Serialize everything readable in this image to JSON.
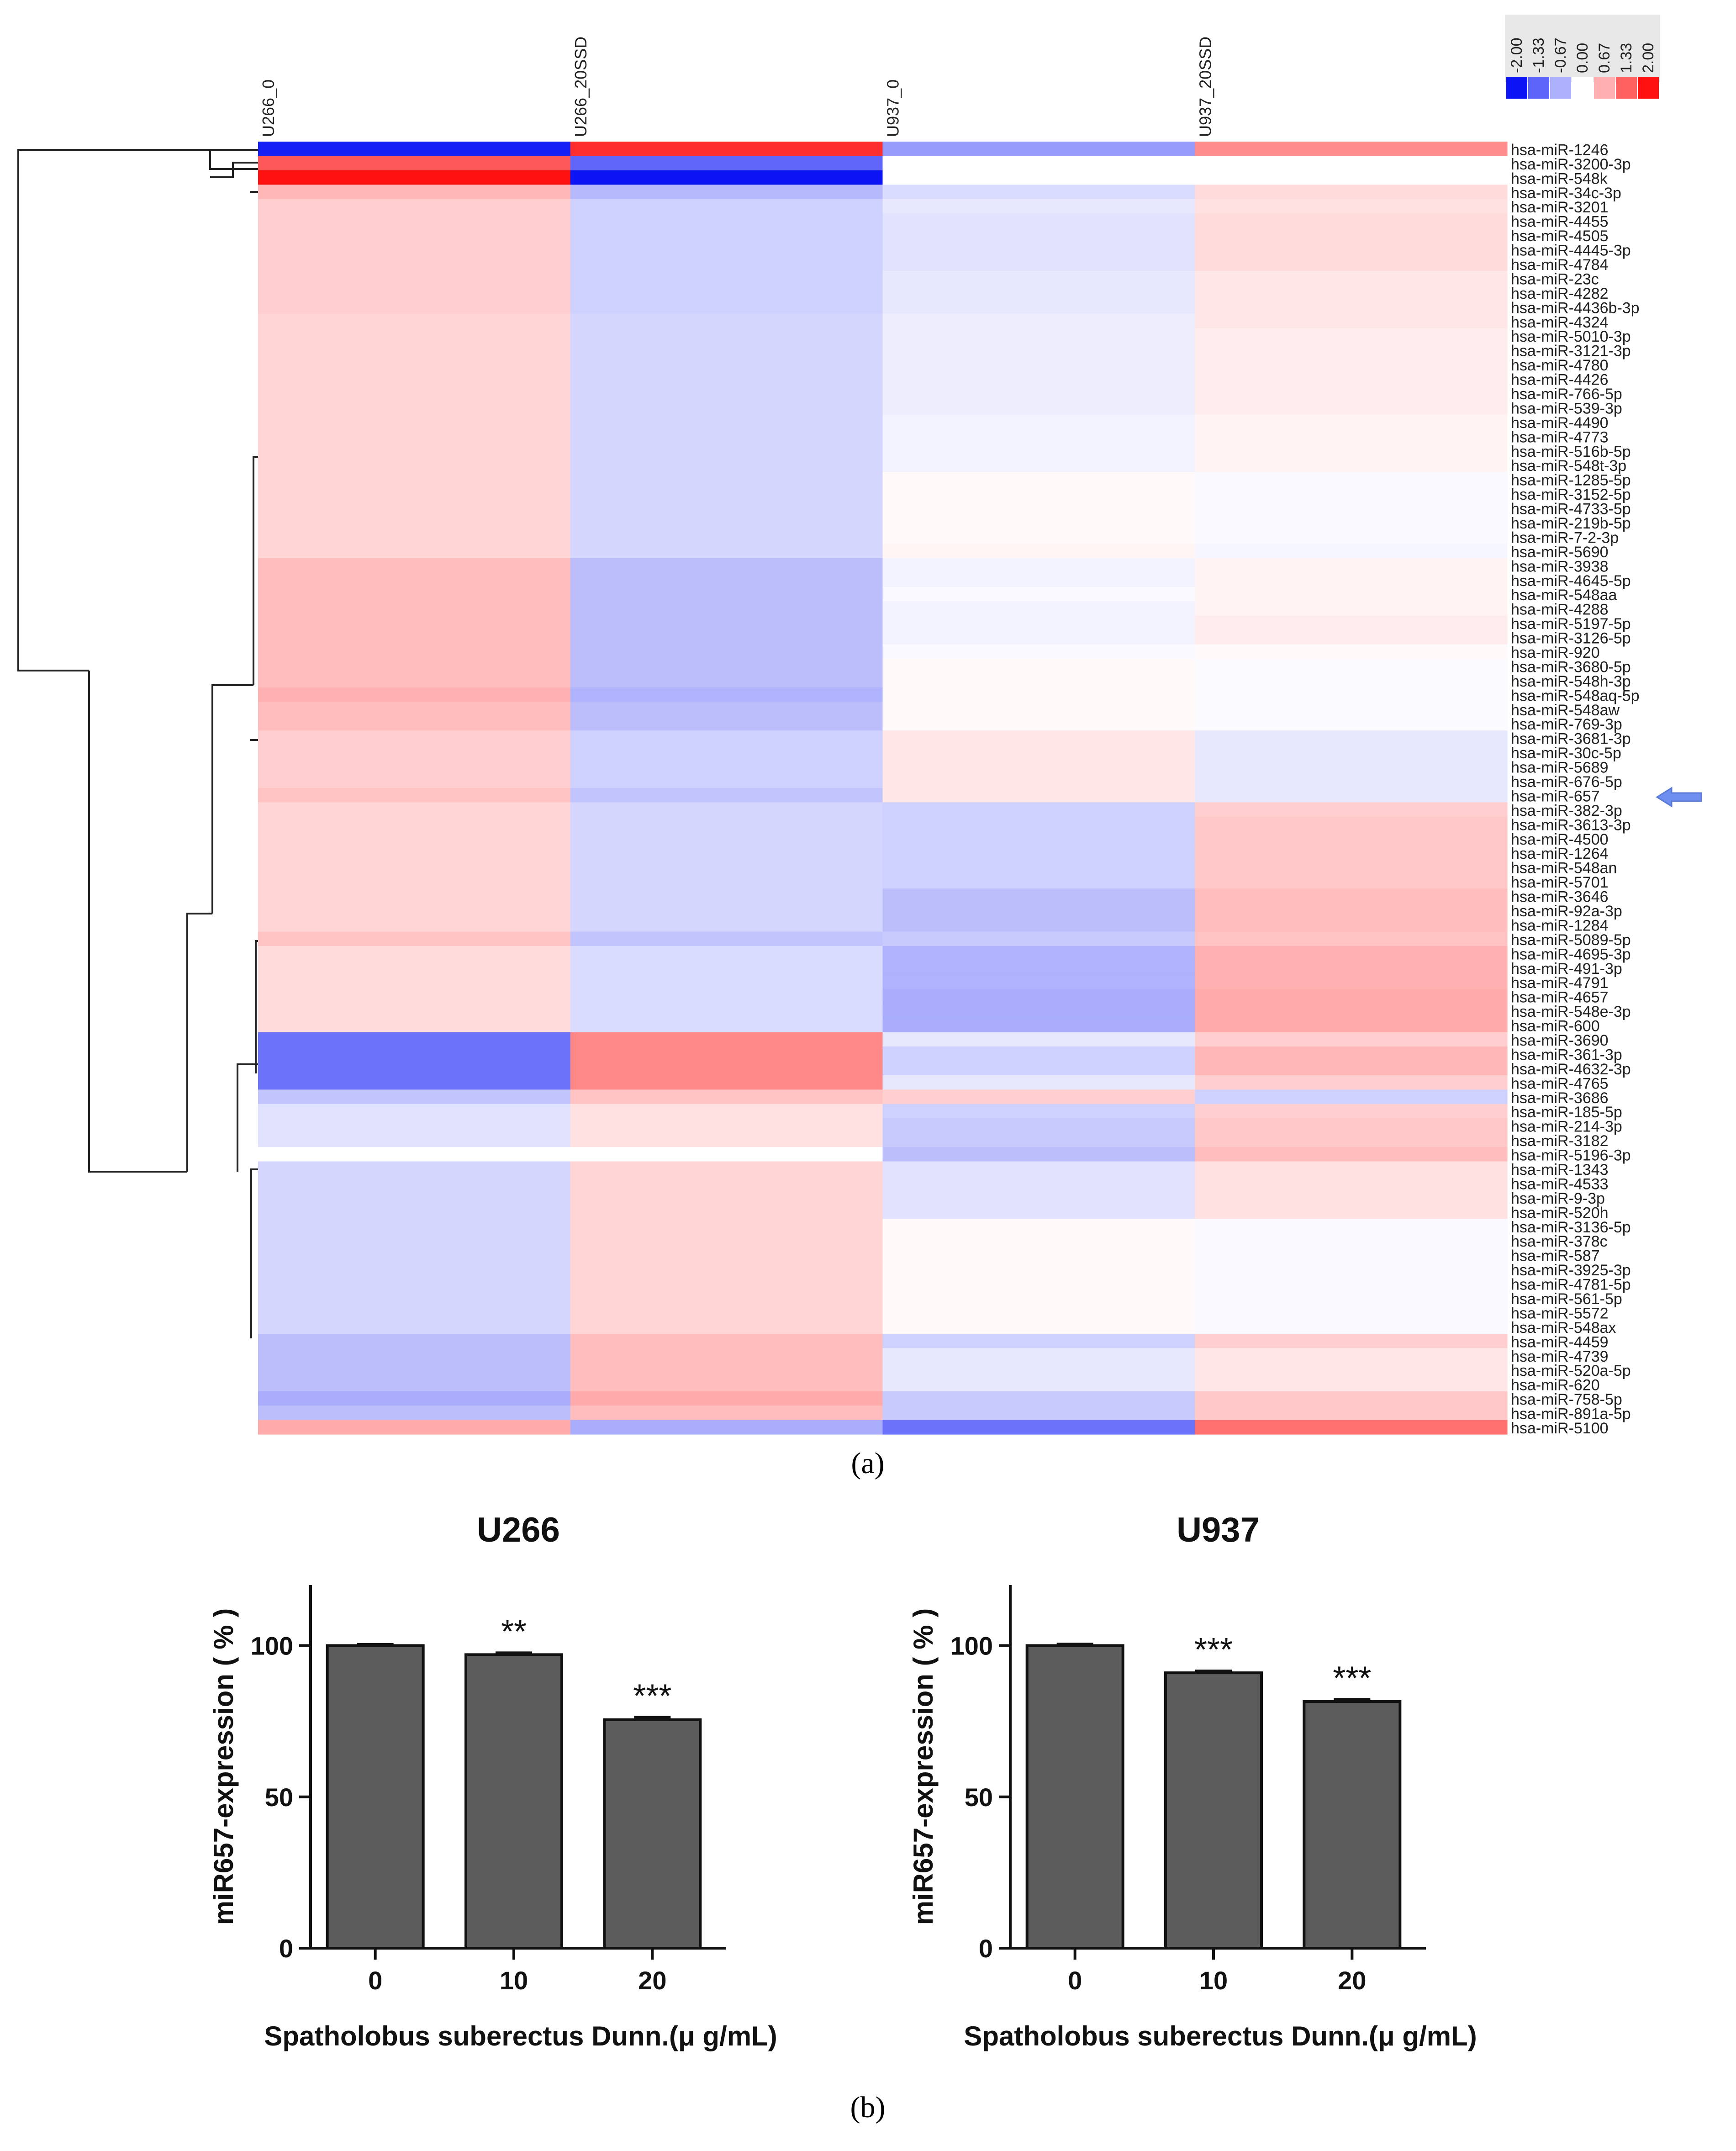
{
  "panel_labels": {
    "a": "(a)",
    "b": "(b)"
  },
  "colors": {
    "low": "#0a14f5",
    "mid": "#ffffff",
    "high": "#ff1010",
    "bar": "#5c5c5c",
    "arrow": "#6f8ff0",
    "legend_bg": "#e8e8e8"
  },
  "chart_data": [
    {
      "type": "heatmap",
      "title": "",
      "columns": [
        "U266_0",
        "U266_20SSD",
        "U937_0",
        "U937_20SSD"
      ],
      "color_scale": {
        "range": [
          -2.0,
          2.0
        ],
        "legend_labels": [
          "-2.00",
          "-1.33",
          "-0.67",
          "0.00",
          "0.67",
          "1.33",
          "2.00"
        ]
      },
      "highlighted_row": "hsa-miR-657",
      "rows": [
        {
          "gene": "hsa-miR-1246",
          "values": [
            -1.9,
            1.75,
            -0.85,
            0.95
          ]
        },
        {
          "gene": "hsa-miR-3200-3p",
          "values": [
            1.4,
            -1.3,
            0.0,
            0.0
          ]
        },
        {
          "gene": "hsa-miR-548k",
          "values": [
            2.0,
            -2.0,
            0.0,
            0.0
          ]
        },
        {
          "gene": "hsa-miR-34c-3p",
          "values": [
            0.6,
            -0.6,
            -0.3,
            0.3
          ]
        },
        {
          "gene": "hsa-miR-3201",
          "values": [
            0.4,
            -0.4,
            -0.2,
            0.25
          ]
        },
        {
          "gene": "hsa-miR-4455",
          "values": [
            0.4,
            -0.4,
            -0.25,
            0.3
          ]
        },
        {
          "gene": "hsa-miR-4505",
          "values": [
            0.4,
            -0.4,
            -0.25,
            0.3
          ]
        },
        {
          "gene": "hsa-miR-4445-3p",
          "values": [
            0.4,
            -0.4,
            -0.25,
            0.3
          ]
        },
        {
          "gene": "hsa-miR-4784",
          "values": [
            0.4,
            -0.4,
            -0.25,
            0.3
          ]
        },
        {
          "gene": "hsa-miR-23c",
          "values": [
            0.4,
            -0.4,
            -0.2,
            0.2
          ]
        },
        {
          "gene": "hsa-miR-4282",
          "values": [
            0.4,
            -0.4,
            -0.2,
            0.2
          ]
        },
        {
          "gene": "hsa-miR-4436b-3p",
          "values": [
            0.4,
            -0.4,
            -0.2,
            0.2
          ]
        },
        {
          "gene": "hsa-miR-4324",
          "values": [
            0.35,
            -0.35,
            -0.15,
            0.2
          ]
        },
        {
          "gene": "hsa-miR-5010-3p",
          "values": [
            0.35,
            -0.35,
            -0.15,
            0.15
          ]
        },
        {
          "gene": "hsa-miR-3121-3p",
          "values": [
            0.35,
            -0.35,
            -0.15,
            0.15
          ]
        },
        {
          "gene": "hsa-miR-4780",
          "values": [
            0.35,
            -0.35,
            -0.15,
            0.15
          ]
        },
        {
          "gene": "hsa-miR-4426",
          "values": [
            0.35,
            -0.35,
            -0.15,
            0.15
          ]
        },
        {
          "gene": "hsa-miR-766-5p",
          "values": [
            0.35,
            -0.35,
            -0.15,
            0.15
          ]
        },
        {
          "gene": "hsa-miR-539-3p",
          "values": [
            0.35,
            -0.35,
            -0.15,
            0.15
          ]
        },
        {
          "gene": "hsa-miR-4490",
          "values": [
            0.35,
            -0.35,
            -0.1,
            0.1
          ]
        },
        {
          "gene": "hsa-miR-4773",
          "values": [
            0.35,
            -0.35,
            -0.1,
            0.1
          ]
        },
        {
          "gene": "hsa-miR-516b-5p",
          "values": [
            0.35,
            -0.35,
            -0.1,
            0.1
          ]
        },
        {
          "gene": "hsa-miR-548t-3p",
          "values": [
            0.35,
            -0.35,
            -0.1,
            0.1
          ]
        },
        {
          "gene": "hsa-miR-1285-5p",
          "values": [
            0.35,
            -0.35,
            0.05,
            -0.05
          ]
        },
        {
          "gene": "hsa-miR-3152-5p",
          "values": [
            0.35,
            -0.35,
            0.05,
            -0.05
          ]
        },
        {
          "gene": "hsa-miR-4733-5p",
          "values": [
            0.35,
            -0.35,
            0.05,
            -0.05
          ]
        },
        {
          "gene": "hsa-miR-219b-5p",
          "values": [
            0.35,
            -0.35,
            0.05,
            -0.05
          ]
        },
        {
          "gene": "hsa-miR-7-2-3p",
          "values": [
            0.35,
            -0.35,
            0.05,
            -0.05
          ]
        },
        {
          "gene": "hsa-miR-5690",
          "values": [
            0.35,
            -0.35,
            0.08,
            -0.08
          ]
        },
        {
          "gene": "hsa-miR-3938",
          "values": [
            0.55,
            -0.55,
            -0.1,
            0.1
          ]
        },
        {
          "gene": "hsa-miR-4645-5p",
          "values": [
            0.55,
            -0.55,
            -0.1,
            0.1
          ]
        },
        {
          "gene": "hsa-miR-548aa",
          "values": [
            0.55,
            -0.55,
            -0.05,
            0.1
          ]
        },
        {
          "gene": "hsa-miR-4288",
          "values": [
            0.55,
            -0.55,
            -0.1,
            0.1
          ]
        },
        {
          "gene": "hsa-miR-5197-5p",
          "values": [
            0.55,
            -0.55,
            -0.1,
            0.15
          ]
        },
        {
          "gene": "hsa-miR-3126-5p",
          "values": [
            0.55,
            -0.55,
            -0.1,
            0.15
          ]
        },
        {
          "gene": "hsa-miR-920",
          "values": [
            0.55,
            -0.55,
            -0.05,
            0.05
          ]
        },
        {
          "gene": "hsa-miR-3680-5p",
          "values": [
            0.55,
            -0.55,
            0.05,
            -0.03
          ]
        },
        {
          "gene": "hsa-miR-548h-3p",
          "values": [
            0.55,
            -0.55,
            0.05,
            -0.03
          ]
        },
        {
          "gene": "hsa-miR-548aq-5p",
          "values": [
            0.65,
            -0.65,
            0.05,
            -0.03
          ]
        },
        {
          "gene": "hsa-miR-548aw",
          "values": [
            0.55,
            -0.55,
            0.05,
            -0.03
          ]
        },
        {
          "gene": "hsa-miR-769-3p",
          "values": [
            0.55,
            -0.55,
            0.05,
            -0.03
          ]
        },
        {
          "gene": "hsa-miR-3681-3p",
          "values": [
            0.4,
            -0.4,
            0.2,
            -0.2
          ]
        },
        {
          "gene": "hsa-miR-30c-5p",
          "values": [
            0.4,
            -0.4,
            0.2,
            -0.2
          ]
        },
        {
          "gene": "hsa-miR-5689",
          "values": [
            0.4,
            -0.4,
            0.2,
            -0.2
          ]
        },
        {
          "gene": "hsa-miR-676-5p",
          "values": [
            0.4,
            -0.4,
            0.2,
            -0.2
          ]
        },
        {
          "gene": "hsa-miR-657",
          "values": [
            0.5,
            -0.5,
            0.2,
            -0.2
          ]
        },
        {
          "gene": "hsa-miR-382-3p",
          "values": [
            0.35,
            -0.35,
            -0.4,
            0.4
          ]
        },
        {
          "gene": "hsa-miR-3613-3p",
          "values": [
            0.35,
            -0.35,
            -0.4,
            0.45
          ]
        },
        {
          "gene": "hsa-miR-4500",
          "values": [
            0.35,
            -0.35,
            -0.4,
            0.45
          ]
        },
        {
          "gene": "hsa-miR-1264",
          "values": [
            0.35,
            -0.35,
            -0.4,
            0.45
          ]
        },
        {
          "gene": "hsa-miR-548an",
          "values": [
            0.35,
            -0.35,
            -0.4,
            0.45
          ]
        },
        {
          "gene": "hsa-miR-5701",
          "values": [
            0.35,
            -0.35,
            -0.4,
            0.45
          ]
        },
        {
          "gene": "hsa-miR-3646",
          "values": [
            0.35,
            -0.35,
            -0.55,
            0.55
          ]
        },
        {
          "gene": "hsa-miR-92a-3p",
          "values": [
            0.35,
            -0.35,
            -0.55,
            0.55
          ]
        },
        {
          "gene": "hsa-miR-1284",
          "values": [
            0.35,
            -0.35,
            -0.55,
            0.55
          ]
        },
        {
          "gene": "hsa-miR-5089-5p",
          "values": [
            0.5,
            -0.5,
            -0.45,
            0.5
          ]
        },
        {
          "gene": "hsa-miR-4695-3p",
          "values": [
            0.3,
            -0.3,
            -0.65,
            0.65
          ]
        },
        {
          "gene": "hsa-miR-491-3p",
          "values": [
            0.3,
            -0.3,
            -0.65,
            0.65
          ]
        },
        {
          "gene": "hsa-miR-4791",
          "values": [
            0.3,
            -0.3,
            -0.65,
            0.65
          ]
        },
        {
          "gene": "hsa-miR-4657",
          "values": [
            0.3,
            -0.3,
            -0.7,
            0.7
          ]
        },
        {
          "gene": "hsa-miR-548e-3p",
          "values": [
            0.3,
            -0.3,
            -0.7,
            0.7
          ]
        },
        {
          "gene": "hsa-miR-600",
          "values": [
            0.3,
            -0.3,
            -0.7,
            0.7
          ]
        },
        {
          "gene": "hsa-miR-3690",
          "values": [
            -1.2,
            1.0,
            -0.2,
            0.4
          ]
        },
        {
          "gene": "hsa-miR-361-3p",
          "values": [
            -1.2,
            1.0,
            -0.4,
            0.6
          ]
        },
        {
          "gene": "hsa-miR-4632-3p",
          "values": [
            -1.2,
            1.0,
            -0.4,
            0.6
          ]
        },
        {
          "gene": "hsa-miR-4765",
          "values": [
            -1.2,
            1.0,
            -0.2,
            0.4
          ]
        },
        {
          "gene": "hsa-miR-3686",
          "values": [
            -0.5,
            0.5,
            0.4,
            -0.4
          ]
        },
        {
          "gene": "hsa-miR-185-5p",
          "values": [
            -0.25,
            0.25,
            -0.4,
            0.4
          ]
        },
        {
          "gene": "hsa-miR-214-3p",
          "values": [
            -0.25,
            0.25,
            -0.45,
            0.45
          ]
        },
        {
          "gene": "hsa-miR-3182",
          "values": [
            -0.25,
            0.25,
            -0.45,
            0.45
          ]
        },
        {
          "gene": "hsa-miR-5196-3p",
          "values": [
            0.0,
            0.0,
            -0.55,
            0.55
          ]
        },
        {
          "gene": "hsa-miR-1343",
          "values": [
            -0.35,
            0.35,
            -0.25,
            0.25
          ]
        },
        {
          "gene": "hsa-miR-4533",
          "values": [
            -0.35,
            0.35,
            -0.25,
            0.25
          ]
        },
        {
          "gene": "hsa-miR-9-3p",
          "values": [
            -0.35,
            0.35,
            -0.25,
            0.25
          ]
        },
        {
          "gene": "hsa-miR-520h",
          "values": [
            -0.35,
            0.35,
            -0.25,
            0.25
          ]
        },
        {
          "gene": "hsa-miR-3136-5p",
          "values": [
            -0.35,
            0.35,
            0.05,
            -0.05
          ]
        },
        {
          "gene": "hsa-miR-378c",
          "values": [
            -0.35,
            0.35,
            0.05,
            -0.05
          ]
        },
        {
          "gene": "hsa-miR-587",
          "values": [
            -0.35,
            0.35,
            0.05,
            -0.05
          ]
        },
        {
          "gene": "hsa-miR-3925-3p",
          "values": [
            -0.35,
            0.35,
            0.05,
            -0.05
          ]
        },
        {
          "gene": "hsa-miR-4781-5p",
          "values": [
            -0.35,
            0.35,
            0.05,
            -0.05
          ]
        },
        {
          "gene": "hsa-miR-561-5p",
          "values": [
            -0.35,
            0.35,
            0.05,
            -0.05
          ]
        },
        {
          "gene": "hsa-miR-5572",
          "values": [
            -0.35,
            0.35,
            0.05,
            -0.05
          ]
        },
        {
          "gene": "hsa-miR-548ax",
          "values": [
            -0.35,
            0.35,
            0.05,
            -0.05
          ]
        },
        {
          "gene": "hsa-miR-4459",
          "values": [
            -0.55,
            0.55,
            -0.4,
            0.4
          ]
        },
        {
          "gene": "hsa-miR-4739",
          "values": [
            -0.55,
            0.55,
            -0.2,
            0.2
          ]
        },
        {
          "gene": "hsa-miR-520a-5p",
          "values": [
            -0.55,
            0.55,
            -0.2,
            0.2
          ]
        },
        {
          "gene": "hsa-miR-620",
          "values": [
            -0.55,
            0.55,
            -0.2,
            0.2
          ]
        },
        {
          "gene": "hsa-miR-758-5p",
          "values": [
            -0.7,
            0.7,
            -0.45,
            0.45
          ]
        },
        {
          "gene": "hsa-miR-891a-5p",
          "values": [
            -0.55,
            0.55,
            -0.45,
            0.45
          ]
        },
        {
          "gene": "hsa-miR-5100",
          "values": [
            0.7,
            -0.7,
            -1.2,
            1.2
          ]
        }
      ]
    },
    {
      "type": "bar",
      "title": "U266",
      "categories": [
        "0",
        "10",
        "20"
      ],
      "values": [
        100,
        97,
        75.5
      ],
      "error": [
        0.4,
        0.6,
        0.8
      ],
      "significance": [
        "",
        "**",
        "***"
      ],
      "xlabel": "Spatholobus suberectus Dunn.(μ g/mL)",
      "ylabel": "miR657-expression  ( % )",
      "yticks": [
        0,
        50,
        100
      ],
      "ylim": [
        0,
        120
      ]
    },
    {
      "type": "bar",
      "title": "U937",
      "categories": [
        "0",
        "10",
        "20"
      ],
      "values": [
        100,
        91,
        81.5
      ],
      "error": [
        0.5,
        0.6,
        0.7
      ],
      "significance": [
        "",
        "***",
        "***"
      ],
      "xlabel": "Spatholobus suberectus Dunn.(μ g/mL)",
      "ylabel": "miR657-expression  ( % )",
      "yticks": [
        0,
        50,
        100
      ],
      "ylim": [
        0,
        120
      ]
    }
  ]
}
